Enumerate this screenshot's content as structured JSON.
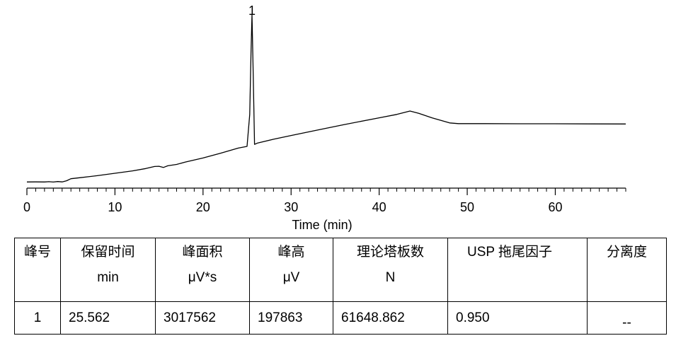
{
  "chart_data": {
    "type": "line",
    "xlabel": "Time (min)",
    "xlim": [
      0,
      68
    ],
    "x_ticks": [
      0,
      10,
      20,
      30,
      40,
      50,
      60
    ],
    "x_tick_labels": [
      "0",
      "10",
      "20",
      "30",
      "40",
      "50",
      "60"
    ],
    "x_minor_tick_step": 1,
    "ylabel": "",
    "ylim": [
      0,
      238000
    ],
    "grid": false,
    "series": [
      {
        "x": [
          0,
          1,
          2,
          2.5,
          3,
          3.5,
          4,
          4.5,
          5,
          6,
          8,
          10,
          12,
          13.5,
          14.5,
          15,
          15.5,
          16,
          17,
          18,
          20,
          22,
          24,
          25.0,
          25.3,
          25.45,
          25.562,
          25.7,
          25.85,
          26.2,
          28,
          30,
          33,
          36,
          40,
          42,
          43.5,
          44.5,
          46,
          48,
          49,
          52,
          56,
          60,
          64,
          68
        ],
        "y": [
          700,
          800,
          700,
          1100,
          600,
          1300,
          800,
          2500,
          5500,
          7000,
          10000,
          13500,
          17000,
          20500,
          23500,
          23800,
          22000,
          24500,
          26500,
          30000,
          36000,
          43000,
          50500,
          53000,
          100000,
          190000,
          247000,
          160000,
          56000,
          58000,
          63500,
          69000,
          77000,
          85000,
          95000,
          100000,
          105000,
          101500,
          95000,
          87500,
          86500,
          86500,
          86300,
          86300,
          86100,
          85900
        ]
      }
    ],
    "annotations": [
      {
        "x": 25.562,
        "text": "1"
      }
    ]
  },
  "table": {
    "headers": [
      [
        "峰号",
        ""
      ],
      [
        "保留时间",
        "min"
      ],
      [
        "峰面积",
        "μV*s"
      ],
      [
        "峰高",
        "μV"
      ],
      [
        "理论塔板数",
        "N"
      ],
      [
        "USP 拖尾因子",
        ""
      ],
      [
        "分离度",
        ""
      ]
    ],
    "rows": [
      [
        "1",
        "25.562",
        "3017562",
        "197863",
        "61648.862",
        "0.950",
        "--"
      ]
    ]
  }
}
